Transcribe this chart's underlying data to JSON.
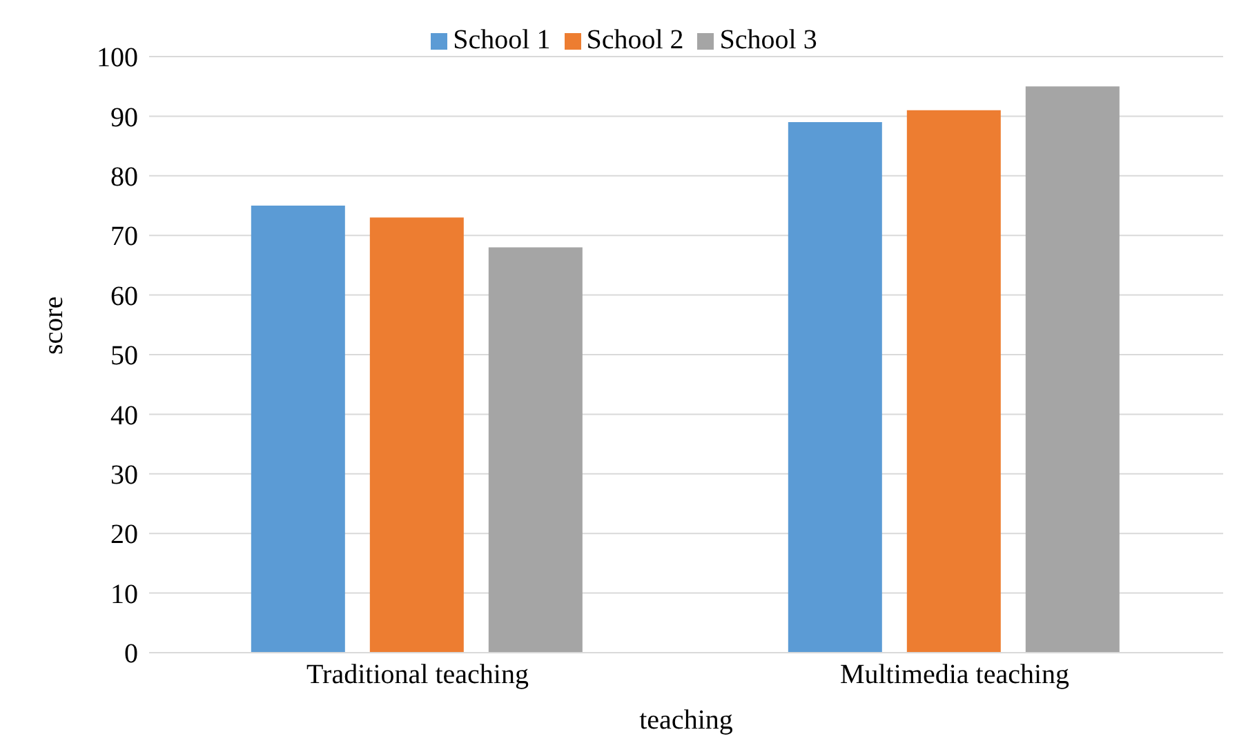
{
  "chart_data": {
    "type": "bar",
    "xlabel": "teaching",
    "ylabel": "score",
    "categories": [
      "Traditional teaching",
      "Multimedia teaching"
    ],
    "series": [
      {
        "name": "School 1",
        "color": "#5b9bd5",
        "values": [
          75,
          89
        ]
      },
      {
        "name": "School 2",
        "color": "#ed7d31",
        "values": [
          73,
          91
        ]
      },
      {
        "name": "School 3",
        "color": "#a5a5a5",
        "values": [
          68,
          95
        ]
      }
    ],
    "ylim": [
      0,
      100
    ],
    "yticks": [
      0,
      10,
      20,
      30,
      40,
      50,
      60,
      70,
      80,
      90,
      100
    ],
    "grid": "y",
    "legend": "top"
  }
}
